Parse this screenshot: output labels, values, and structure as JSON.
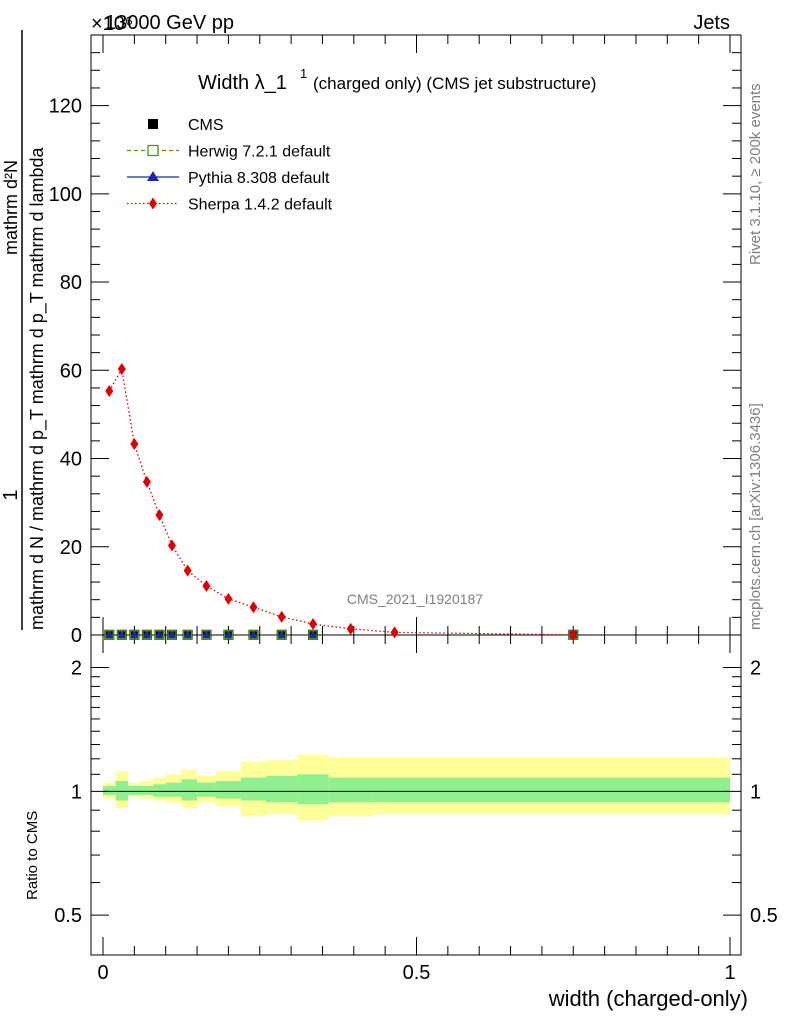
{
  "header": {
    "exponent_marker": "×10⁶",
    "energy": "13000 GeV pp",
    "process": "Jets"
  },
  "plot_title": {
    "main": "Width λ_1",
    "superscript": "1",
    "sub": "(charged only) (CMS jet substructure)"
  },
  "side_labels": {
    "rivet": "Rivet 3.1.10, ≥ 200k events",
    "mcplots": "mcplots.cern.ch [arXiv:1306.3436]"
  },
  "watermark": "CMS_2021_I1920187",
  "ylabel_main": {
    "numerator": "1",
    "denominator": "mathrm d N / mathrm d p_T mathrm d p_T mathrm d lambda",
    "right_numerator": "mathrm d²N"
  },
  "ylabel_ratio": "Ratio to CMS",
  "xlabel": "width (charged-only)",
  "legend": [
    {
      "key": "cms",
      "label": "CMS",
      "color": "#000000",
      "style": "square-filled"
    },
    {
      "key": "herwig",
      "label": "Herwig 7.2.1 default",
      "color": "#4c9a19",
      "style": "square-open-dashed"
    },
    {
      "key": "pythia",
      "label": "Pythia 8.308 default",
      "color": "#1a26b3",
      "style": "triangle-solid"
    },
    {
      "key": "sherpa",
      "label": "Sherpa 1.4.2 default",
      "color": "#e00000",
      "style": "diamond-dotted"
    }
  ],
  "chart_data": [
    {
      "type": "scatter",
      "panel": "main",
      "xlim": [
        0,
        1
      ],
      "ylim": [
        0,
        136
      ],
      "yticks": [
        0,
        20,
        40,
        60,
        80,
        100,
        120
      ],
      "xticks": [
        0,
        0.5,
        1
      ],
      "xtick_labels": [
        "0",
        "0.5",
        "1"
      ],
      "series": [
        {
          "name": "Sherpa 1.4.2 default",
          "color": "#e00000",
          "x": [
            0.01,
            0.03,
            0.05,
            0.07,
            0.09,
            0.11,
            0.135,
            0.165,
            0.2,
            0.24,
            0.285,
            0.335,
            0.395,
            0.465,
            0.75
          ],
          "y": [
            55.3,
            60.3,
            43.3,
            34.7,
            27.2,
            20.3,
            14.6,
            11.1,
            8.2,
            6.3,
            4.1,
            2.5,
            1.4,
            0.6,
            0.05
          ]
        },
        {
          "name": "CMS",
          "color": "#000000",
          "x": [
            0.01,
            0.03,
            0.05,
            0.07,
            0.09,
            0.11,
            0.135,
            0.165,
            0.2,
            0.24,
            0.285,
            0.335,
            0.75
          ],
          "y": [
            0.05,
            0.05,
            0.05,
            0.05,
            0.05,
            0.05,
            0.05,
            0.05,
            0.05,
            0.05,
            0.05,
            0.05,
            0.05
          ]
        },
        {
          "name": "Herwig 7.2.1 default",
          "color": "#4c9a19",
          "x": [
            0.01,
            0.03,
            0.05,
            0.07,
            0.09,
            0.11,
            0.135,
            0.165,
            0.2,
            0.24,
            0.285,
            0.335,
            0.75
          ],
          "y": [
            0.05,
            0.05,
            0.05,
            0.05,
            0.05,
            0.05,
            0.05,
            0.05,
            0.05,
            0.05,
            0.05,
            0.05,
            0.05
          ]
        },
        {
          "name": "Pythia 8.308 default",
          "color": "#1a26b3",
          "x": [
            0.01,
            0.03,
            0.05,
            0.07,
            0.09,
            0.11,
            0.135,
            0.165,
            0.2,
            0.24,
            0.285,
            0.335,
            0.75
          ],
          "y": [
            0.05,
            0.05,
            0.05,
            0.05,
            0.05,
            0.05,
            0.05,
            0.05,
            0.05,
            0.05,
            0.05,
            0.05,
            0.05
          ]
        }
      ]
    },
    {
      "type": "area",
      "panel": "ratio",
      "xlim": [
        0,
        1
      ],
      "ylim": [
        0.4,
        2.4
      ],
      "yscale": "log",
      "yticks": [
        0.5,
        1,
        2
      ],
      "ytick_labels": [
        "0.5",
        "1",
        "2"
      ],
      "reference_line": 1,
      "bin_edges": [
        0,
        0.02,
        0.04,
        0.06,
        0.08,
        0.1,
        0.125,
        0.15,
        0.18,
        0.22,
        0.26,
        0.31,
        0.36,
        0.43,
        1.0
      ],
      "bands": [
        {
          "name": "stat",
          "color": "#90f090",
          "lo": [
            0.98,
            0.95,
            0.98,
            0.98,
            0.97,
            0.97,
            0.95,
            0.97,
            0.96,
            0.95,
            0.94,
            0.93,
            0.94,
            0.94
          ],
          "hi": [
            1.03,
            1.06,
            1.03,
            1.03,
            1.04,
            1.05,
            1.07,
            1.05,
            1.06,
            1.08,
            1.09,
            1.1,
            1.08,
            1.08
          ]
        },
        {
          "name": "total",
          "color": "#ffff99",
          "lo": [
            0.96,
            0.91,
            0.97,
            0.96,
            0.95,
            0.94,
            0.91,
            0.94,
            0.92,
            0.87,
            0.88,
            0.85,
            0.87,
            0.88
          ],
          "hi": [
            1.05,
            1.12,
            1.05,
            1.06,
            1.08,
            1.1,
            1.13,
            1.09,
            1.12,
            1.18,
            1.19,
            1.23,
            1.21,
            1.21
          ]
        }
      ]
    }
  ]
}
